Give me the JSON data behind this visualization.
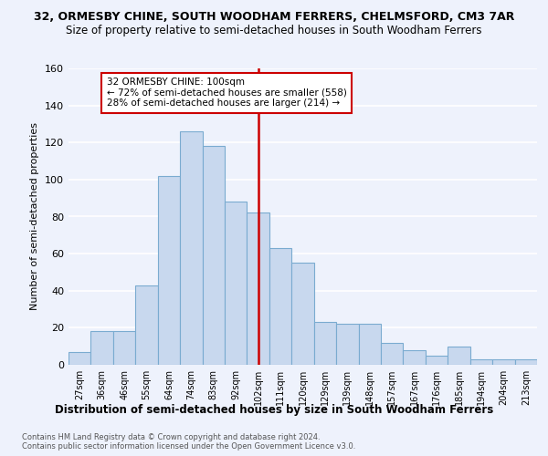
{
  "title1": "32, ORMESBY CHINE, SOUTH WOODHAM FERRERS, CHELMSFORD, CM3 7AR",
  "title2": "Size of property relative to semi-detached houses in South Woodham Ferrers",
  "xlabel": "Distribution of semi-detached houses by size in South Woodham Ferrers",
  "ylabel": "Number of semi-detached properties",
  "footnote": "Contains HM Land Registry data © Crown copyright and database right 2024.\nContains public sector information licensed under the Open Government Licence v3.0.",
  "categories": [
    "27sqm",
    "36sqm",
    "46sqm",
    "55sqm",
    "64sqm",
    "74sqm",
    "83sqm",
    "92sqm",
    "102sqm",
    "111sqm",
    "120sqm",
    "129sqm",
    "139sqm",
    "148sqm",
    "157sqm",
    "167sqm",
    "176sqm",
    "185sqm",
    "194sqm",
    "204sqm",
    "213sqm"
  ],
  "values": [
    7,
    18,
    18,
    43,
    102,
    126,
    118,
    88,
    82,
    63,
    55,
    23,
    22,
    22,
    12,
    8,
    5,
    10,
    3,
    3,
    3
  ],
  "bar_color": "#c8d8ee",
  "bar_edge_color": "#7aaBd0",
  "vline_index": 8,
  "vline_color": "#cc0000",
  "annotation_text": "32 ORMESBY CHINE: 100sqm\n← 72% of semi-detached houses are smaller (558)\n28% of semi-detached houses are larger (214) →",
  "annotation_box_edgecolor": "#cc0000",
  "annotation_box_facecolor": "white",
  "ylim": [
    0,
    160
  ],
  "yticks": [
    0,
    20,
    40,
    60,
    80,
    100,
    120,
    140,
    160
  ],
  "background_color": "#eef2fc",
  "grid_color": "white",
  "title1_fontsize": 9,
  "title2_fontsize": 8.5
}
